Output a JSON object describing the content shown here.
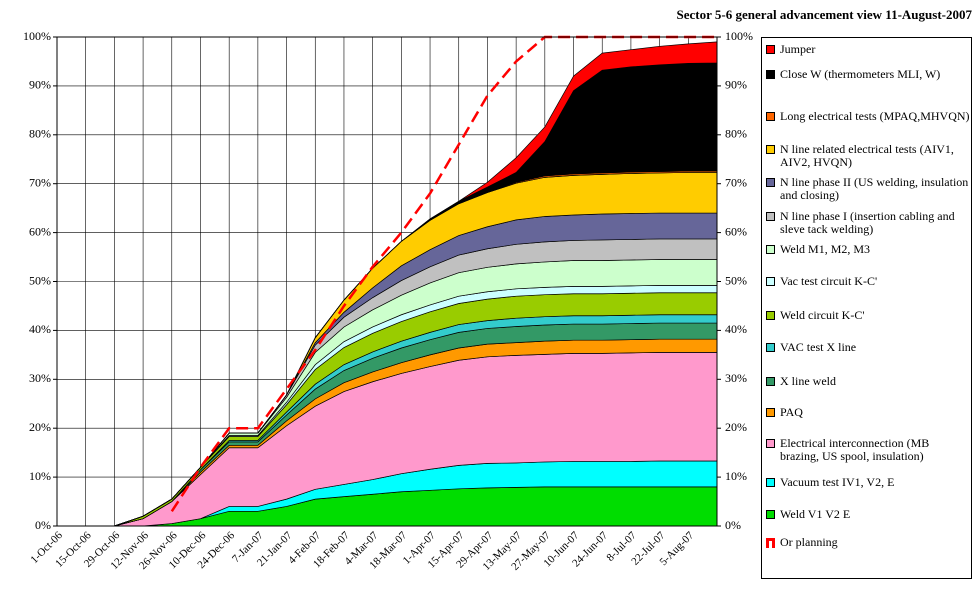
{
  "chart_data": {
    "type": "stacked-area",
    "title": "Sector 5-6 general advancement view 11-August-2007",
    "categories": [
      "1-Oct-06",
      "15-Oct-06",
      "29-Oct-06",
      "12-Nov-06",
      "26-Nov-06",
      "10-Dec-06",
      "24-Dec-06",
      "7-Jan-07",
      "21-Jan-07",
      "4-Feb-07",
      "18-Feb-07",
      "4-Mar-07",
      "18-Mar-07",
      "1-Apr-07",
      "15-Apr-07",
      "29-Apr-07",
      "13-May-07",
      "27-May-07",
      "10-Jun-07",
      "24-Jun-07",
      "8-Jul-07",
      "22-Jul-07",
      "5-Aug-07",
      null
    ],
    "ylim": [
      0,
      100
    ],
    "yticks": [
      {
        "value": 0,
        "label": "0%"
      },
      {
        "value": 10,
        "label": "10%"
      },
      {
        "value": 20,
        "label": "20%"
      },
      {
        "value": 30,
        "label": "30%"
      },
      {
        "value": 40,
        "label": "40%"
      },
      {
        "value": 50,
        "label": "50%"
      },
      {
        "value": 60,
        "label": "60%"
      },
      {
        "value": 70,
        "label": "70%"
      },
      {
        "value": 80,
        "label": "80%"
      },
      {
        "value": 90,
        "label": "90%"
      },
      {
        "value": 100,
        "label": "100%"
      }
    ],
    "y2lim": [
      0,
      100
    ],
    "y2ticks": [
      {
        "value": 0,
        "label": "0%"
      },
      {
        "value": 10,
        "label": "10%"
      },
      {
        "value": 20,
        "label": "20%"
      },
      {
        "value": 30,
        "label": "30%"
      },
      {
        "value": 40,
        "label": "40%"
      },
      {
        "value": 50,
        "label": "50%"
      },
      {
        "value": 60,
        "label": "60%"
      },
      {
        "value": 70,
        "label": "70%"
      },
      {
        "value": 80,
        "label": "80%"
      },
      {
        "value": 90,
        "label": "90%"
      },
      {
        "value": 100,
        "label": "100%"
      }
    ],
    "grid": true,
    "series": [
      {
        "name": "Weld V1 V2 E",
        "color": "#00dd00",
        "values": [
          0,
          0,
          0,
          0,
          0.5,
          1.5,
          3,
          3,
          4,
          5.5,
          6,
          6.5,
          7,
          7.3,
          7.6,
          7.8,
          7.9,
          8,
          8,
          8,
          8,
          8,
          8,
          8
        ]
      },
      {
        "name": "Vacuum test IV1, V2, E",
        "color": "#00ffff",
        "values": [
          0,
          0,
          0,
          0,
          0,
          0,
          1,
          1,
          1.5,
          2,
          2.5,
          3,
          3.7,
          4.3,
          4.8,
          5,
          5,
          5.1,
          5.2,
          5.2,
          5.2,
          5.3,
          5.3,
          5.3
        ]
      },
      {
        "name": "Electrical interconnection (MB brazing, US spool, insulation)",
        "color": "#ff99cc",
        "values": [
          0,
          0,
          0,
          1.5,
          4.5,
          9,
          12,
          12,
          15,
          17,
          19,
          20,
          20.5,
          21,
          21.5,
          21.8,
          22,
          22,
          22.1,
          22.1,
          22.2,
          22.2,
          22.2,
          22.2
        ]
      },
      {
        "name": "PAQ",
        "color": "#ff9900",
        "values": [
          0,
          0,
          0,
          0,
          0,
          0.5,
          0.5,
          0.5,
          1,
          1.5,
          1.8,
          2,
          2.2,
          2.4,
          2.5,
          2.6,
          2.6,
          2.7,
          2.7,
          2.7,
          2.7,
          2.7,
          2.7,
          2.7
        ]
      },
      {
        "name": "X line weld",
        "color": "#339966",
        "values": [
          0,
          0,
          0,
          0,
          0,
          0.5,
          0.7,
          0.7,
          1.2,
          2,
          2.5,
          2.8,
          3,
          3.1,
          3.2,
          3.2,
          3.3,
          3.3,
          3.3,
          3.3,
          3.3,
          3.3,
          3.3,
          3.3
        ]
      },
      {
        "name": "VAC test X line",
        "color": "#33cccc",
        "values": [
          0,
          0,
          0,
          0,
          0,
          0,
          0.3,
          0.3,
          0.6,
          1,
          1.2,
          1.3,
          1.4,
          1.5,
          1.6,
          1.6,
          1.7,
          1.7,
          1.7,
          1.7,
          1.7,
          1.7,
          1.7,
          1.7
        ]
      },
      {
        "name": "Weld circuit K-C'",
        "color": "#99cc00",
        "values": [
          0,
          0,
          0,
          0.5,
          0.5,
          0.5,
          0.8,
          0.8,
          1.5,
          3,
          3.5,
          3.8,
          4,
          4.2,
          4.3,
          4.4,
          4.5,
          4.5,
          4.5,
          4.5,
          4.5,
          4.5,
          4.5,
          4.5
        ]
      },
      {
        "name": "Vac test circuit K-C'",
        "color": "#ccffff",
        "values": [
          0,
          0,
          0,
          0,
          0,
          0,
          0.2,
          0.2,
          0.5,
          1,
          1.2,
          1.3,
          1.4,
          1.4,
          1.5,
          1.5,
          1.5,
          1.5,
          1.5,
          1.5,
          1.5,
          1.5,
          1.5,
          1.5
        ]
      },
      {
        "name": "Weld M1, M2, M3",
        "color": "#ccffcc",
        "values": [
          0,
          0,
          0,
          0,
          0,
          0,
          0.5,
          0.5,
          1,
          2.5,
          3,
          3.5,
          4,
          4.5,
          4.8,
          5,
          5.1,
          5.2,
          5.3,
          5.3,
          5.3,
          5.3,
          5.3,
          5.3
        ]
      },
      {
        "name": "N line phase I (insertion cabling and sleve tack welding)",
        "color": "#c0c0c0",
        "values": [
          0,
          0,
          0,
          0,
          0,
          0,
          0,
          0,
          0.5,
          1.5,
          2,
          2.5,
          3,
          3.3,
          3.6,
          3.8,
          4,
          4.1,
          4.1,
          4.2,
          4.2,
          4.2,
          4.2,
          4.2
        ]
      },
      {
        "name": "N line phase II (US welding, insulation and closing)",
        "color": "#666699",
        "values": [
          0,
          0,
          0,
          0,
          0,
          0,
          0,
          0,
          0,
          0.5,
          1,
          2,
          3,
          3.5,
          4,
          4.5,
          5,
          5.2,
          5.2,
          5.3,
          5.3,
          5.3,
          5.3,
          5.3
        ]
      },
      {
        "name": "N line related electrical tests (AIV1, AIV2, HVQN)",
        "color": "#ffcc00",
        "values": [
          0,
          0,
          0,
          0,
          0,
          0,
          0,
          0,
          0,
          1,
          2.5,
          4,
          5,
          6,
          6.5,
          7,
          7.5,
          8,
          8.1,
          8.1,
          8.2,
          8.2,
          8.3,
          8.3
        ]
      },
      {
        "name": "Long electrical tests (MPAQ,MHVQN)",
        "color": "#ff6600",
        "values": [
          0,
          0,
          0,
          0,
          0,
          0,
          0,
          0,
          0,
          0,
          0,
          0,
          0,
          0,
          0,
          0.1,
          0.2,
          0.3,
          0.3,
          0.3,
          0.3,
          0.3,
          0.3,
          0.3
        ]
      },
      {
        "name": "Close W (thermometers MLI, W)",
        "color": "#000000",
        "values": [
          0,
          0,
          0,
          0,
          0,
          0,
          0,
          0,
          0,
          0,
          0,
          0,
          0,
          0.3,
          0.5,
          1,
          2,
          7,
          17,
          21,
          21.5,
          21.8,
          22,
          22.1
        ]
      },
      {
        "name": "Jumper",
        "color": "#ff0000",
        "values": [
          0,
          0,
          0,
          0,
          0,
          0,
          0,
          0,
          0,
          0,
          0,
          0,
          0,
          0,
          0,
          1,
          3,
          3,
          3,
          3.5,
          3.5,
          3.8,
          4,
          4.3
        ]
      }
    ],
    "planning": {
      "name": "Or planning",
      "color": "#ff0000",
      "values": [
        null,
        null,
        null,
        null,
        3,
        12,
        20,
        20,
        28,
        36,
        45,
        53,
        60,
        68,
        78,
        88,
        95,
        100,
        100,
        100,
        100,
        100,
        100,
        100
      ]
    }
  }
}
